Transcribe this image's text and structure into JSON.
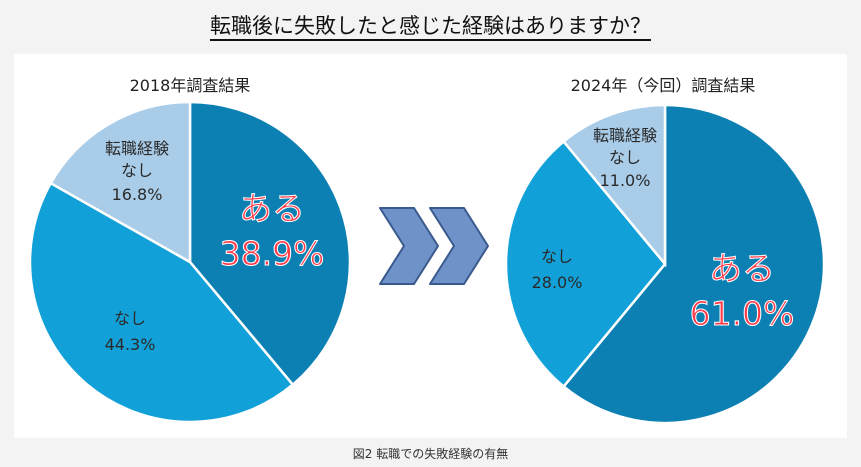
{
  "title": "転職後に失敗したと感じた経験はありますか？",
  "caption": "図2 転職での失敗経験の有無",
  "chart_data": [
    {
      "type": "pie",
      "title": "2018年調査結果",
      "slices": [
        {
          "name": "ある",
          "value": 38.9,
          "label": "38.9%",
          "color": "#0d80b3"
        },
        {
          "name": "なし",
          "value": 44.3,
          "label": "44.3%",
          "color": "#12a0d8"
        },
        {
          "name": "転職経験なし",
          "name_lines": [
            "転職経験",
            "なし"
          ],
          "value": 16.8,
          "label": "16.8%",
          "color": "#a9cce9"
        }
      ]
    },
    {
      "type": "pie",
      "title": "2024年（今回）調査結果",
      "slices": [
        {
          "name": "ある",
          "value": 61.0,
          "label": "61.0%",
          "color": "#0d80b3"
        },
        {
          "name": "なし",
          "value": 28.0,
          "label": "28.0%",
          "color": "#12a0d8"
        },
        {
          "name": "転職経験なし",
          "name_lines": [
            "転職経験",
            "なし"
          ],
          "value": 11.0,
          "label": "11.0%",
          "color": "#a9cce9"
        }
      ]
    }
  ],
  "arrow_color": "#6f93c8"
}
